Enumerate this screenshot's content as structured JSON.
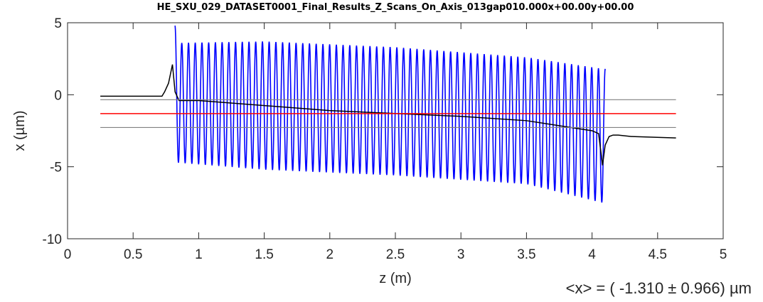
{
  "chart_data": {
    "type": "line",
    "title": "HE_SXU_029_DATASET0001_Final_Results_Z_Scans_On_Axis_013gap010.000x+00.00y+00.00",
    "xlabel": "z (m)",
    "ylabel": "x (µm)",
    "xlim": [
      0,
      5
    ],
    "ylim": [
      -10,
      5
    ],
    "xticks": [
      "0",
      "0.5",
      "1",
      "1.5",
      "2",
      "2.5",
      "3",
      "3.5",
      "4",
      "4.5",
      "5"
    ],
    "yticks": [
      "5",
      "0",
      "-5",
      "-10"
    ],
    "grid": false,
    "annotation": "<x> = ( -1.310 ± 0.966) µm",
    "colors": {
      "oscillation": "#0000ff",
      "trajectory": "#000000",
      "mean": "#ff0000",
      "band": "#808080"
    },
    "series": [
      {
        "style": "oscillation",
        "z_start": 0.82,
        "z_end": 4.1,
        "periods": 64,
        "upper_envelope": [
          [
            0.82,
            4.8
          ],
          [
            0.85,
            3.6
          ],
          [
            1.5,
            3.7
          ],
          [
            2.5,
            3.3
          ],
          [
            3.5,
            2.6
          ],
          [
            4.08,
            1.8
          ]
        ],
        "lower_envelope": [
          [
            0.82,
            -4.7
          ],
          [
            1.5,
            -5.2
          ],
          [
            2.5,
            -5.6
          ],
          [
            3.5,
            -6.2
          ],
          [
            4.08,
            -7.5
          ]
        ]
      },
      {
        "style": "trajectory",
        "x": [
          0.25,
          0.72,
          0.74,
          0.77,
          0.8,
          0.82,
          0.85,
          1.0,
          2.0,
          3.0,
          3.5,
          4.0,
          4.05,
          4.08,
          4.1,
          4.13,
          4.16,
          4.2,
          4.3,
          4.64
        ],
        "y": [
          -0.1,
          -0.1,
          0.2,
          0.8,
          2.1,
          0.2,
          -0.4,
          -0.4,
          -1.1,
          -1.5,
          -1.8,
          -2.5,
          -2.7,
          -4.9,
          -3.5,
          -2.9,
          -2.8,
          -2.8,
          -2.9,
          -3.0
        ]
      },
      {
        "style": "mean",
        "x": [
          0.25,
          4.64
        ],
        "y": [
          -1.31,
          -1.31
        ]
      },
      {
        "style": "band",
        "x": [
          0.25,
          4.64
        ],
        "y": [
          -0.344,
          -0.344
        ]
      },
      {
        "style": "band",
        "x": [
          0.25,
          4.64
        ],
        "y": [
          -2.276,
          -2.276
        ]
      }
    ]
  }
}
